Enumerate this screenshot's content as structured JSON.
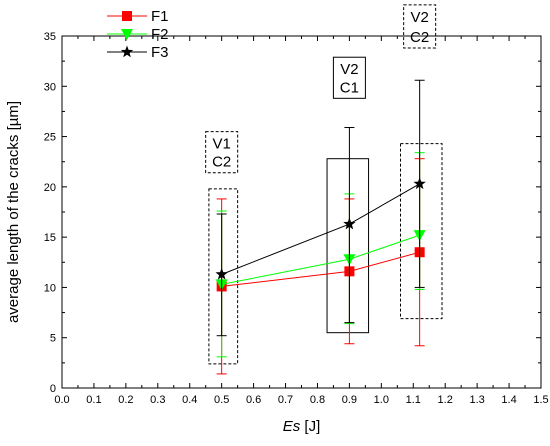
{
  "chart_data": {
    "type": "line",
    "xlabel_italic": "Es",
    "xlabel_unit": " [J]",
    "ylabel": "average length of the cracks [µm]",
    "xlim": [
      0.0,
      1.5
    ],
    "ylim": [
      0,
      35
    ],
    "x_ticks": [
      "0.0",
      "0.1",
      "0.2",
      "0.3",
      "0.4",
      "0.5",
      "0.6",
      "0.7",
      "0.8",
      "0.9",
      "1.0",
      "1.1",
      "1.2",
      "1.3",
      "1.4",
      "1.5"
    ],
    "y_ticks": [
      "0",
      "5",
      "10",
      "15",
      "20",
      "25",
      "30",
      "35"
    ],
    "x_tick_values": [
      0.0,
      0.1,
      0.2,
      0.3,
      0.4,
      0.5,
      0.6,
      0.7,
      0.8,
      0.9,
      1.0,
      1.1,
      1.2,
      1.3,
      1.4,
      1.5
    ],
    "y_tick_values": [
      0,
      5,
      10,
      15,
      20,
      25,
      30,
      35
    ],
    "x": [
      0.5,
      0.9,
      1.12
    ],
    "legend_position": "top-left",
    "series": [
      {
        "name": "F1",
        "color": "#ff0000",
        "marker": "square",
        "values": [
          10.1,
          11.6,
          13.5
        ],
        "err_low": [
          1.4,
          4.4,
          4.2
        ],
        "err_high": [
          18.8,
          18.8,
          22.8
        ]
      },
      {
        "name": "F2",
        "color": "#00ff00",
        "marker": "triangle-down",
        "values": [
          10.3,
          12.8,
          15.2
        ],
        "err_low": [
          3.1,
          6.4,
          9.8
        ],
        "err_high": [
          17.6,
          19.3,
          23.4
        ]
      },
      {
        "name": "F3",
        "color": "#000000",
        "marker": "star",
        "values": [
          11.3,
          16.3,
          20.3
        ],
        "err_low": [
          5.2,
          6.5,
          10.0
        ],
        "err_high": [
          17.3,
          25.9,
          30.6
        ]
      }
    ],
    "annotations": [
      {
        "lines": [
          "V1",
          "C2"
        ],
        "dashed": true,
        "box_x": [
          0.46,
          0.55
        ],
        "box_y": [
          2.4,
          19.8
        ],
        "label_x": 0.5,
        "label_y": [
          23.8,
          22.0
        ]
      },
      {
        "lines": [
          "V2",
          "C1"
        ],
        "dashed": false,
        "box_x": [
          0.83,
          0.96
        ],
        "box_y": [
          5.5,
          22.8
        ],
        "label_x": 0.9,
        "label_y": [
          31.2,
          29.4
        ]
      },
      {
        "lines": [
          "V2",
          "C2"
        ],
        "dashed": true,
        "box_x": [
          1.06,
          1.19
        ],
        "box_y": [
          6.9,
          24.3
        ],
        "label_x": 1.12,
        "label_y": [
          36.4,
          34.4
        ]
      }
    ]
  }
}
